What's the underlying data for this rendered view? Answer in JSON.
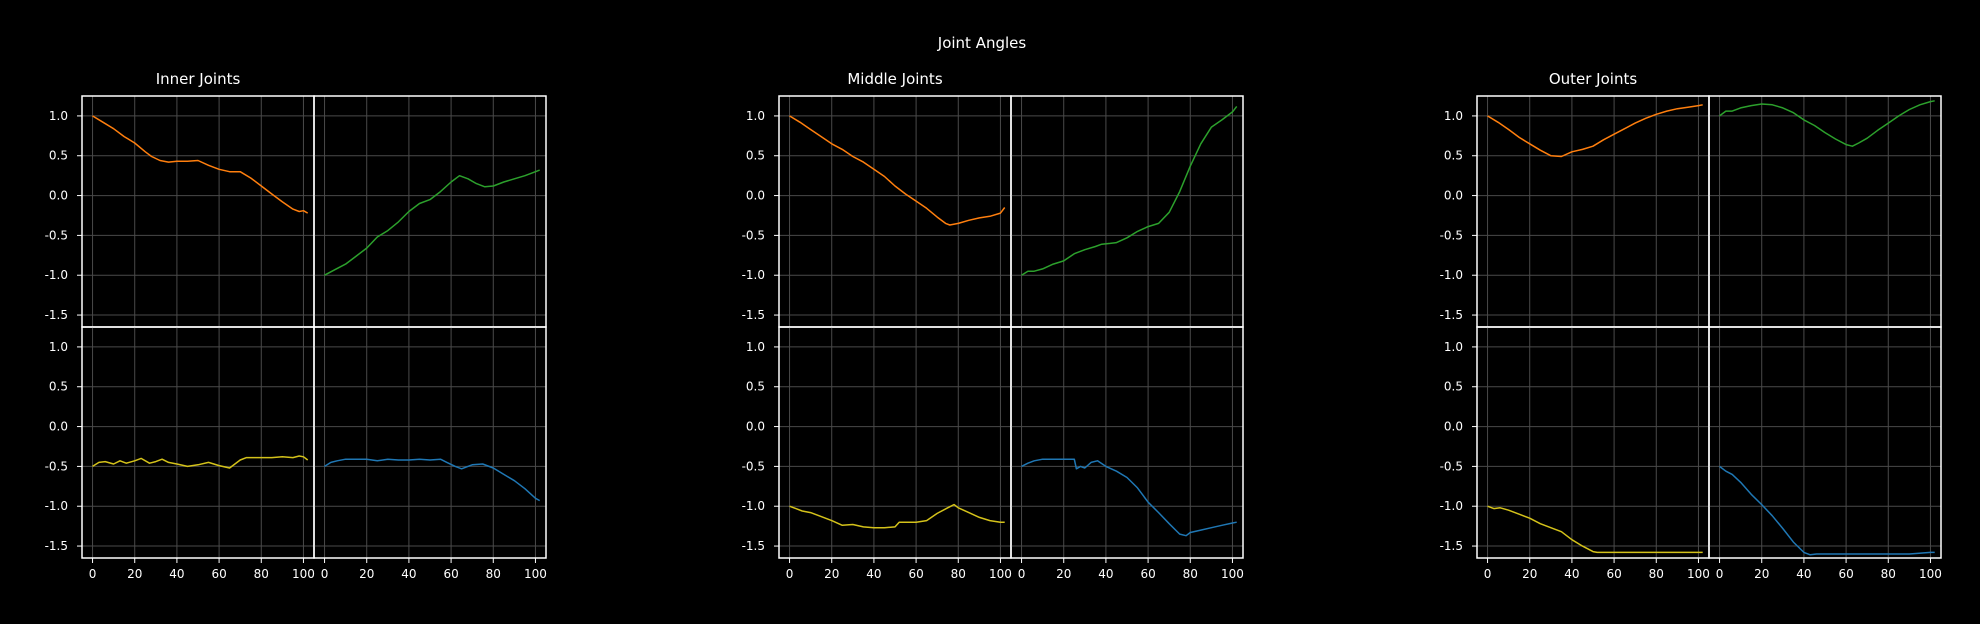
{
  "title": "Joint Angles",
  "colors": {
    "background": "#000000",
    "axes": "#ffffff",
    "grid": "#4a4a4a",
    "orange": "#ff7f0e",
    "green": "#2ca02c",
    "yellow": "#d4c21a",
    "blue": "#1f77b4"
  },
  "chart_data": [
    {
      "type": "line",
      "title": "Inner Joints",
      "xlim": [
        -5,
        105
      ],
      "ylim": [
        -1.65,
        1.25
      ],
      "xticks": [
        0,
        20,
        40,
        60,
        80,
        100
      ],
      "yticks": [
        1.0,
        0.5,
        0.0,
        -0.5,
        -1.0,
        -1.5
      ],
      "grid": true,
      "panels": [
        {
          "color": "orange",
          "x": [
            0,
            5,
            10,
            15,
            20,
            25,
            28,
            32,
            36,
            40,
            45,
            50,
            55,
            60,
            65,
            70,
            75,
            80,
            85,
            90,
            95,
            98,
            100,
            102
          ],
          "y": [
            1.0,
            0.92,
            0.84,
            0.74,
            0.66,
            0.55,
            0.49,
            0.44,
            0.42,
            0.43,
            0.43,
            0.44,
            0.38,
            0.33,
            0.3,
            0.3,
            0.22,
            0.12,
            0.02,
            -0.08,
            -0.17,
            -0.2,
            -0.19,
            -0.22
          ]
        },
        {
          "color": "green",
          "x": [
            0,
            5,
            10,
            15,
            20,
            25,
            30,
            35,
            40,
            45,
            50,
            55,
            60,
            64,
            68,
            72,
            76,
            80,
            85,
            90,
            95,
            100,
            102
          ],
          "y": [
            -1.0,
            -0.93,
            -0.86,
            -0.76,
            -0.66,
            -0.52,
            -0.44,
            -0.33,
            -0.2,
            -0.1,
            -0.05,
            0.05,
            0.17,
            0.25,
            0.21,
            0.15,
            0.11,
            0.12,
            0.17,
            0.21,
            0.25,
            0.3,
            0.32
          ]
        },
        {
          "color": "yellow",
          "x": [
            0,
            3,
            6,
            10,
            13,
            16,
            20,
            23,
            27,
            30,
            33,
            36,
            40,
            45,
            50,
            55,
            60,
            65,
            70,
            73,
            76,
            80,
            85,
            90,
            95,
            98,
            100,
            102
          ],
          "y": [
            -0.5,
            -0.45,
            -0.44,
            -0.47,
            -0.43,
            -0.46,
            -0.43,
            -0.4,
            -0.46,
            -0.44,
            -0.41,
            -0.45,
            -0.47,
            -0.5,
            -0.48,
            -0.45,
            -0.49,
            -0.52,
            -0.42,
            -0.39,
            -0.39,
            -0.39,
            -0.39,
            -0.38,
            -0.39,
            -0.37,
            -0.38,
            -0.42
          ]
        },
        {
          "color": "blue",
          "x": [
            0,
            3,
            6,
            10,
            15,
            20,
            25,
            30,
            35,
            40,
            45,
            50,
            55,
            58,
            62,
            65,
            70,
            75,
            80,
            85,
            90,
            95,
            100,
            102
          ],
          "y": [
            -0.5,
            -0.45,
            -0.43,
            -0.41,
            -0.41,
            -0.41,
            -0.43,
            -0.41,
            -0.42,
            -0.42,
            -0.41,
            -0.42,
            -0.41,
            -0.45,
            -0.5,
            -0.53,
            -0.48,
            -0.47,
            -0.52,
            -0.6,
            -0.68,
            -0.78,
            -0.9,
            -0.93
          ]
        }
      ]
    },
    {
      "type": "line",
      "title": "Middle Joints",
      "xlim": [
        -5,
        105
      ],
      "ylim": [
        -1.65,
        1.25
      ],
      "xticks": [
        0,
        20,
        40,
        60,
        80,
        100
      ],
      "yticks": [
        1.0,
        0.5,
        0.0,
        -0.5,
        -1.0,
        -1.5
      ],
      "grid": true,
      "panels": [
        {
          "color": "orange",
          "x": [
            0,
            5,
            10,
            15,
            20,
            25,
            30,
            35,
            40,
            45,
            50,
            55,
            60,
            65,
            70,
            74,
            76,
            80,
            85,
            90,
            95,
            100,
            102
          ],
          "y": [
            1.0,
            0.92,
            0.83,
            0.74,
            0.65,
            0.58,
            0.49,
            0.42,
            0.33,
            0.24,
            0.12,
            0.02,
            -0.07,
            -0.16,
            -0.27,
            -0.35,
            -0.37,
            -0.35,
            -0.31,
            -0.28,
            -0.26,
            -0.22,
            -0.15
          ]
        },
        {
          "color": "green",
          "x": [
            0,
            3,
            6,
            10,
            15,
            20,
            25,
            30,
            35,
            38,
            42,
            45,
            50,
            55,
            60,
            65,
            70,
            75,
            80,
            85,
            90,
            95,
            100,
            102
          ],
          "y": [
            -1.0,
            -0.95,
            -0.95,
            -0.92,
            -0.86,
            -0.82,
            -0.73,
            -0.68,
            -0.64,
            -0.61,
            -0.6,
            -0.59,
            -0.53,
            -0.45,
            -0.39,
            -0.35,
            -0.21,
            0.05,
            0.37,
            0.65,
            0.86,
            0.95,
            1.05,
            1.12
          ]
        },
        {
          "color": "yellow",
          "x": [
            0,
            3,
            6,
            10,
            15,
            20,
            25,
            30,
            35,
            40,
            45,
            50,
            52,
            55,
            60,
            65,
            70,
            75,
            78,
            80,
            85,
            90,
            95,
            100,
            102
          ],
          "y": [
            -1.0,
            -1.03,
            -1.06,
            -1.08,
            -1.13,
            -1.18,
            -1.24,
            -1.23,
            -1.26,
            -1.27,
            -1.27,
            -1.26,
            -1.2,
            -1.2,
            -1.2,
            -1.18,
            -1.09,
            -1.02,
            -0.98,
            -1.02,
            -1.08,
            -1.14,
            -1.18,
            -1.2,
            -1.2
          ]
        },
        {
          "color": "blue",
          "x": [
            0,
            3,
            6,
            10,
            15,
            20,
            25,
            26,
            28,
            30,
            33,
            36,
            40,
            45,
            50,
            55,
            60,
            65,
            70,
            75,
            78,
            80,
            85,
            90,
            95,
            100,
            102
          ],
          "y": [
            -0.5,
            -0.46,
            -0.43,
            -0.41,
            -0.41,
            -0.41,
            -0.41,
            -0.53,
            -0.5,
            -0.52,
            -0.45,
            -0.43,
            -0.5,
            -0.56,
            -0.64,
            -0.77,
            -0.95,
            -1.08,
            -1.22,
            -1.35,
            -1.37,
            -1.33,
            -1.3,
            -1.27,
            -1.24,
            -1.21,
            -1.2
          ]
        }
      ]
    },
    {
      "type": "line",
      "title": "Outer Joints",
      "xlim": [
        -5,
        105
      ],
      "ylim": [
        -1.65,
        1.25
      ],
      "xticks": [
        0,
        20,
        40,
        60,
        80,
        100
      ],
      "yticks": [
        1.0,
        0.5,
        0.0,
        -0.5,
        -1.0,
        -1.5
      ],
      "grid": true,
      "panels": [
        {
          "color": "orange",
          "x": [
            0,
            5,
            10,
            15,
            20,
            25,
            30,
            35,
            40,
            45,
            50,
            55,
            60,
            65,
            70,
            75,
            80,
            85,
            90,
            95,
            100,
            102
          ],
          "y": [
            1.0,
            0.92,
            0.83,
            0.73,
            0.65,
            0.57,
            0.5,
            0.49,
            0.55,
            0.58,
            0.62,
            0.7,
            0.77,
            0.84,
            0.91,
            0.97,
            1.02,
            1.06,
            1.09,
            1.11,
            1.13,
            1.14
          ]
        },
        {
          "color": "green",
          "x": [
            0,
            3,
            6,
            10,
            15,
            20,
            25,
            30,
            35,
            40,
            45,
            50,
            55,
            60,
            63,
            66,
            70,
            75,
            80,
            85,
            90,
            95,
            100,
            102
          ],
          "y": [
            1.0,
            1.06,
            1.06,
            1.1,
            1.13,
            1.15,
            1.14,
            1.1,
            1.04,
            0.95,
            0.88,
            0.79,
            0.71,
            0.64,
            0.62,
            0.66,
            0.72,
            0.82,
            0.91,
            1.0,
            1.08,
            1.14,
            1.18,
            1.19
          ]
        },
        {
          "color": "yellow",
          "x": [
            0,
            3,
            6,
            10,
            15,
            20,
            25,
            30,
            35,
            40,
            45,
            50,
            52,
            55,
            60,
            70,
            80,
            90,
            100,
            102
          ],
          "y": [
            -1.0,
            -1.03,
            -1.02,
            -1.05,
            -1.1,
            -1.15,
            -1.22,
            -1.27,
            -1.32,
            -1.42,
            -1.5,
            -1.57,
            -1.58,
            -1.58,
            -1.58,
            -1.58,
            -1.58,
            -1.58,
            -1.58,
            -1.58
          ]
        },
        {
          "color": "blue",
          "x": [
            0,
            3,
            6,
            10,
            15,
            20,
            25,
            30,
            35,
            40,
            43,
            46,
            50,
            55,
            60,
            70,
            80,
            90,
            100,
            102
          ],
          "y": [
            -0.5,
            -0.56,
            -0.6,
            -0.7,
            -0.85,
            -0.98,
            -1.12,
            -1.28,
            -1.45,
            -1.58,
            -1.61,
            -1.6,
            -1.6,
            -1.6,
            -1.6,
            -1.6,
            -1.6,
            -1.6,
            -1.58,
            -1.58
          ]
        }
      ]
    }
  ]
}
